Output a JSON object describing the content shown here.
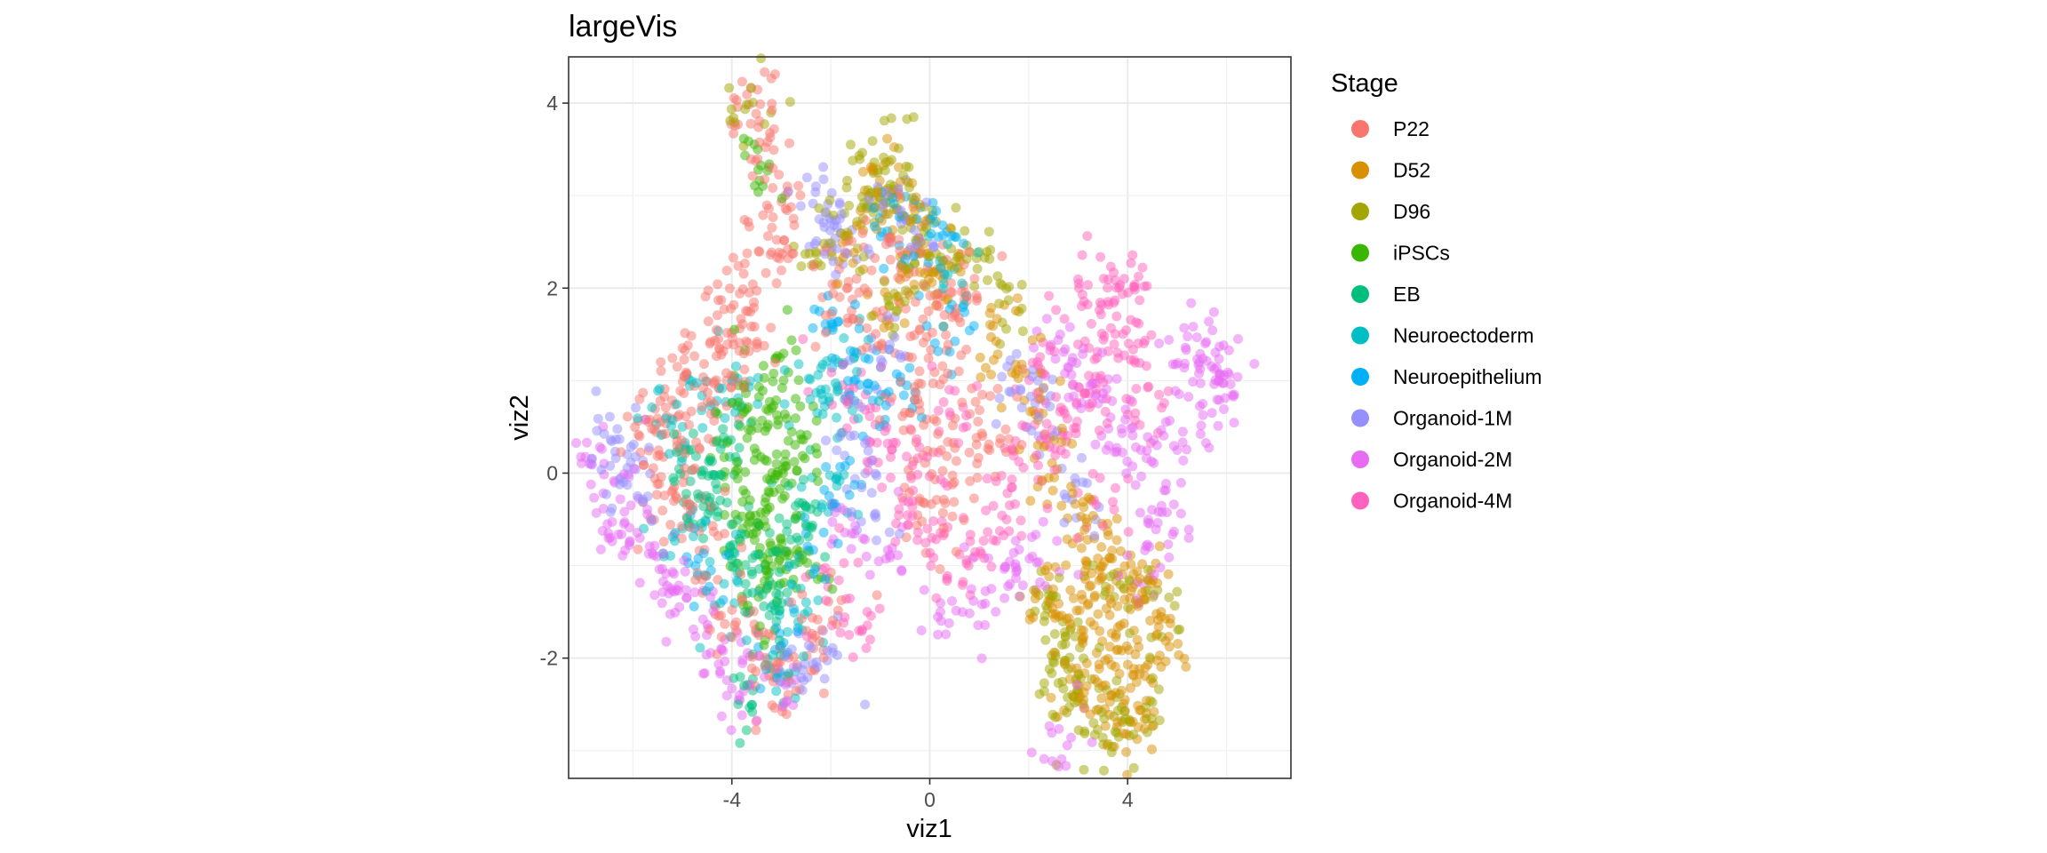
{
  "chart_data": {
    "type": "scatter",
    "title": "largeVis",
    "xlabel": "viz1",
    "ylabel": "viz2",
    "xlim": [
      -7.3,
      7.3
    ],
    "ylim": [
      -3.3,
      4.5
    ],
    "x_ticks": [
      -4,
      0,
      4
    ],
    "y_ticks": [
      -2,
      0,
      2,
      4
    ],
    "x_tick_labels": [
      "-4",
      "0",
      "4"
    ],
    "y_tick_labels": [
      "-2",
      "0",
      "2",
      "4"
    ],
    "grid": true,
    "point_alpha": 0.5,
    "legend": {
      "title": "Stage",
      "position": "right",
      "entries": [
        "P22",
        "D52",
        "D96",
        "iPSCs",
        "EB",
        "Neuroectoderm",
        "Neuroepithelium",
        "Organoid-1M",
        "Organoid-2M",
        "Organoid-4M"
      ]
    },
    "series": [
      {
        "name": "P22",
        "color": "#F8766D",
        "points": [
          [
            -3.7,
            4.1
          ],
          [
            -3.6,
            3.8
          ],
          [
            -3.3,
            3.4
          ],
          [
            -3.1,
            3.0
          ],
          [
            -2.9,
            2.6
          ],
          [
            -3.4,
            2.3
          ],
          [
            -3.8,
            2.0
          ],
          [
            -4.2,
            1.7
          ],
          [
            -4.6,
            1.3
          ],
          [
            -5.0,
            1.0
          ],
          [
            -5.4,
            0.7
          ],
          [
            -5.8,
            0.4
          ],
          [
            -5.5,
            0.1
          ],
          [
            -5.0,
            0.3
          ],
          [
            -4.6,
            0.6
          ],
          [
            -4.2,
            0.9
          ],
          [
            -3.9,
            1.2
          ],
          [
            -3.5,
            1.5
          ],
          [
            -4.8,
            -0.2
          ],
          [
            -5.2,
            -0.5
          ],
          [
            -4.5,
            -1.0
          ],
          [
            -4.0,
            -1.5
          ],
          [
            -3.6,
            -1.8
          ],
          [
            -3.2,
            -2.1
          ],
          [
            -2.8,
            -2.3
          ],
          [
            -2.5,
            -1.9
          ],
          [
            -2.2,
            -1.5
          ],
          [
            -0.8,
            2.6
          ],
          [
            -0.4,
            2.3
          ],
          [
            0.0,
            2.0
          ],
          [
            0.4,
            1.8
          ],
          [
            0.8,
            2.1
          ],
          [
            -0.2,
            1.4
          ],
          [
            0.2,
            1.0
          ],
          [
            -0.5,
            0.7
          ],
          [
            0.0,
            0.4
          ],
          [
            0.5,
            0.2
          ],
          [
            -0.3,
            -0.2
          ],
          [
            0.3,
            -0.5
          ],
          [
            1.0,
            0.6
          ],
          [
            1.4,
            0.3
          ],
          [
            -1.6,
            2.2
          ],
          [
            -2.0,
            1.9
          ],
          [
            -1.2,
            1.6
          ]
        ]
      },
      {
        "name": "D52",
        "color": "#D89000",
        "points": [
          [
            2.4,
            -1.5
          ],
          [
            2.7,
            -1.2
          ],
          [
            3.0,
            -1.6
          ],
          [
            3.3,
            -2.0
          ],
          [
            3.6,
            -1.4
          ],
          [
            3.9,
            -1.8
          ],
          [
            4.2,
            -2.2
          ],
          [
            4.5,
            -1.6
          ],
          [
            4.8,
            -2.0
          ],
          [
            3.5,
            -2.5
          ],
          [
            3.8,
            -2.8
          ],
          [
            4.1,
            -2.4
          ],
          [
            3.2,
            -1.0
          ],
          [
            3.6,
            -0.7
          ],
          [
            4.0,
            -1.1
          ],
          [
            4.4,
            -1.3
          ],
          [
            2.9,
            -2.3
          ],
          [
            -1.2,
            2.9
          ],
          [
            -0.8,
            3.2
          ],
          [
            -0.4,
            2.7
          ],
          [
            0.0,
            2.4
          ],
          [
            0.3,
            2.1
          ],
          [
            -0.6,
            2.0
          ],
          [
            -1.4,
            2.5
          ],
          [
            1.2,
            1.6
          ],
          [
            1.8,
            1.2
          ],
          [
            2.2,
            0.6
          ],
          [
            2.6,
            0.0
          ],
          [
            3.0,
            -0.4
          ]
        ]
      },
      {
        "name": "D96",
        "color": "#A3A500",
        "points": [
          [
            -1.0,
            3.4
          ],
          [
            -0.7,
            3.1
          ],
          [
            -1.3,
            3.0
          ],
          [
            -0.4,
            2.9
          ],
          [
            -1.6,
            2.6
          ],
          [
            -0.2,
            2.2
          ],
          [
            0.2,
            2.5
          ],
          [
            -0.9,
            1.9
          ],
          [
            2.2,
            -1.3
          ],
          [
            2.5,
            -1.8
          ],
          [
            2.8,
            -2.1
          ],
          [
            3.1,
            -2.6
          ],
          [
            2.6,
            -2.4
          ],
          [
            3.4,
            -2.9
          ],
          [
            4.0,
            -2.8
          ],
          [
            4.4,
            -2.5
          ],
          [
            3.7,
            -1.2
          ],
          [
            4.6,
            -1.4
          ],
          [
            -3.7,
            4.0
          ],
          [
            -2.2,
            2.4
          ],
          [
            1.0,
            2.2
          ],
          [
            1.6,
            1.8
          ]
        ]
      },
      {
        "name": "iPSCs",
        "color": "#39B600",
        "points": [
          [
            -3.6,
            1.0
          ],
          [
            -3.3,
            0.7
          ],
          [
            -3.0,
            0.4
          ],
          [
            -3.4,
            0.1
          ],
          [
            -3.8,
            -0.2
          ],
          [
            -3.2,
            -0.5
          ],
          [
            -2.8,
            -0.8
          ],
          [
            -3.5,
            -1.0
          ],
          [
            -3.1,
            -1.3
          ],
          [
            -2.7,
            -1.1
          ],
          [
            -3.9,
            0.5
          ],
          [
            -2.6,
            0.2
          ],
          [
            -3.0,
            -0.1
          ],
          [
            -3.7,
            -0.6
          ],
          [
            -2.9,
            1.2
          ],
          [
            -3.3,
            3.3
          ]
        ]
      },
      {
        "name": "EB",
        "color": "#00BF7D",
        "points": [
          [
            -4.6,
            -0.3
          ],
          [
            -4.2,
            -0.6
          ],
          [
            -3.8,
            -0.9
          ],
          [
            -4.4,
            0.0
          ],
          [
            -4.0,
            0.3
          ],
          [
            -3.5,
            -1.3
          ],
          [
            -3.1,
            -0.9
          ],
          [
            -2.7,
            -0.4
          ],
          [
            -3.3,
            -1.6
          ],
          [
            -3.6,
            -2.4
          ],
          [
            -2.4,
            -0.6
          ],
          [
            -4.8,
            0.2
          ]
        ]
      },
      {
        "name": "Neuroectoderm",
        "color": "#00BFC4",
        "points": [
          [
            -4.4,
            1.0
          ],
          [
            -4.0,
            0.7
          ],
          [
            -2.4,
            1.0
          ],
          [
            -2.1,
            0.6
          ],
          [
            -5.0,
            -0.6
          ],
          [
            -4.2,
            -1.3
          ],
          [
            -2.6,
            -1.6
          ],
          [
            -2.0,
            -0.3
          ],
          [
            -3.0,
            -2.0
          ],
          [
            -5.4,
            0.6
          ],
          [
            -1.6,
            1.3
          ],
          [
            0.5,
            2.3
          ]
        ]
      },
      {
        "name": "Neuroepithelium",
        "color": "#00B0F6",
        "points": [
          [
            -2.0,
            1.6
          ],
          [
            -1.6,
            1.2
          ],
          [
            -1.2,
            0.8
          ],
          [
            -0.8,
            2.8
          ],
          [
            -0.4,
            2.5
          ],
          [
            0.2,
            2.7
          ],
          [
            -4.6,
            -1.0
          ],
          [
            -3.2,
            -1.8
          ],
          [
            -2.5,
            -0.9
          ],
          [
            -1.8,
            -0.1
          ],
          [
            -0.5,
            0.9
          ],
          [
            0.3,
            1.5
          ]
        ]
      },
      {
        "name": "Organoid-1M",
        "color": "#9590FF",
        "points": [
          [
            -6.6,
            0.4
          ],
          [
            -6.3,
            0.1
          ],
          [
            -6.0,
            -0.2
          ],
          [
            -2.3,
            2.9
          ],
          [
            -2.0,
            2.6
          ],
          [
            -1.7,
            2.3
          ],
          [
            -0.6,
            2.8
          ],
          [
            -0.3,
            2.6
          ],
          [
            1.8,
            0.9
          ],
          [
            2.2,
            0.6
          ],
          [
            -1.4,
            0.2
          ],
          [
            -1.0,
            -0.4
          ],
          [
            -2.6,
            -2.2
          ],
          [
            -2.2,
            -2.0
          ],
          [
            -0.9,
            1.4
          ],
          [
            3.0,
            -0.2
          ]
        ]
      },
      {
        "name": "Organoid-2M",
        "color": "#E76BF3",
        "points": [
          [
            -6.8,
            0.3
          ],
          [
            -6.5,
            -0.2
          ],
          [
            -6.2,
            -0.5
          ],
          [
            -5.8,
            -0.8
          ],
          [
            -5.4,
            -1.1
          ],
          [
            -5.0,
            -1.3
          ],
          [
            -4.6,
            -1.6
          ],
          [
            -4.2,
            -2.1
          ],
          [
            -3.8,
            -2.3
          ],
          [
            -3.0,
            -2.3
          ],
          [
            2.6,
            1.4
          ],
          [
            3.0,
            1.1
          ],
          [
            3.4,
            0.8
          ],
          [
            3.8,
            0.5
          ],
          [
            4.2,
            0.2
          ],
          [
            4.6,
            -0.2
          ],
          [
            5.0,
            0.4
          ],
          [
            5.4,
            0.8
          ],
          [
            5.8,
            1.2
          ],
          [
            6.0,
            0.9
          ],
          [
            5.6,
            1.5
          ],
          [
            5.2,
            1.3
          ],
          [
            4.8,
            -0.6
          ],
          [
            4.4,
            -1.0
          ],
          [
            2.2,
            -0.8
          ],
          [
            1.8,
            -1.1
          ],
          [
            1.2,
            -1.3
          ],
          [
            0.5,
            -1.5
          ],
          [
            2.6,
            -2.8
          ],
          [
            -1.0,
            -0.8
          ],
          [
            -1.6,
            -0.5
          ]
        ]
      },
      {
        "name": "Organoid-4M",
        "color": "#FF62BC",
        "points": [
          [
            3.0,
            1.6
          ],
          [
            3.4,
            1.9
          ],
          [
            3.8,
            2.0
          ],
          [
            4.2,
            1.8
          ],
          [
            4.0,
            1.4
          ],
          [
            3.6,
            1.2
          ],
          [
            3.2,
            0.9
          ],
          [
            2.8,
            0.6
          ],
          [
            2.4,
            0.3
          ],
          [
            2.0,
            0.0
          ],
          [
            1.6,
            -0.3
          ],
          [
            1.2,
            -0.6
          ],
          [
            0.8,
            -0.9
          ],
          [
            -0.2,
            0.0
          ],
          [
            -0.6,
            -0.3
          ],
          [
            -1.0,
            0.3
          ],
          [
            -1.4,
            0.6
          ],
          [
            -1.8,
            0.9
          ],
          [
            0.4,
            0.6
          ],
          [
            0.0,
            -0.8
          ],
          [
            3.6,
            -0.3
          ],
          [
            4.4,
            0.7
          ],
          [
            2.2,
            1.0
          ],
          [
            -2.0,
            -1.2
          ],
          [
            -1.5,
            -1.6
          ]
        ]
      }
    ]
  }
}
